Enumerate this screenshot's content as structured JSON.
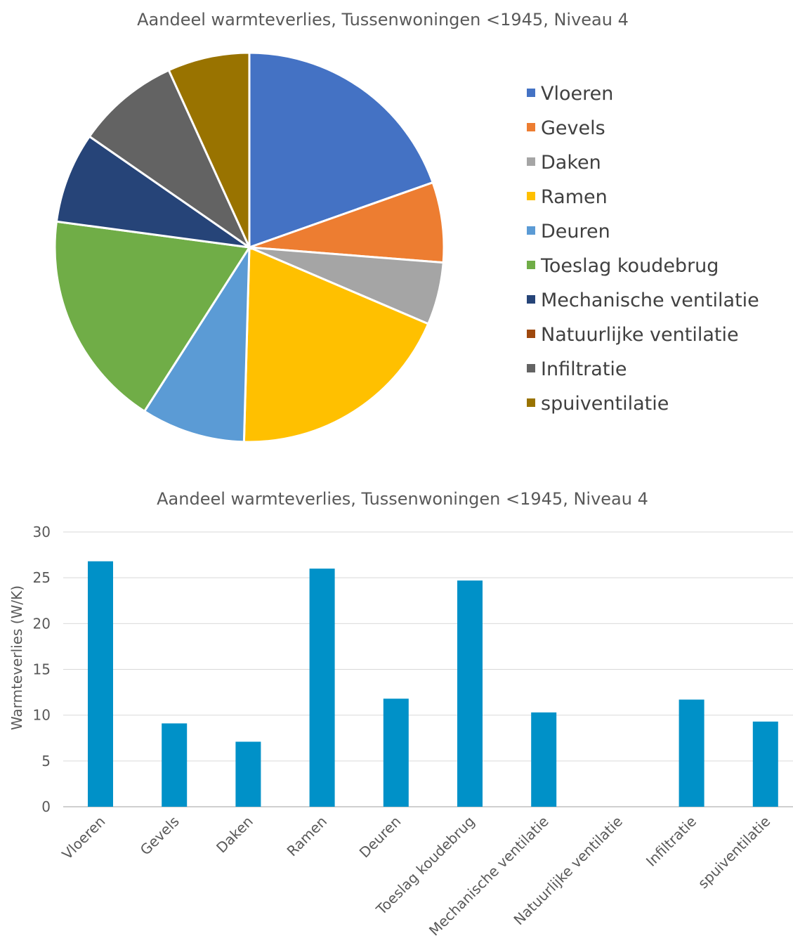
{
  "chart_data": [
    {
      "type": "pie",
      "title": "Aandeel warmteverlies, Tussenwoningen <1945, Niveau 4",
      "categories": [
        "Vloeren",
        "Gevels",
        "Daken",
        "Ramen",
        "Deuren",
        "Toeslag koudebrug",
        "Mechanische ventilatie",
        "Natuurlijke ventilatie",
        "Infiltratie",
        "spuiventilatie"
      ],
      "values": [
        26.8,
        9.1,
        7.1,
        26.0,
        11.8,
        24.7,
        10.3,
        0,
        11.7,
        9.3
      ],
      "colors": [
        "#4472C4",
        "#ED7D31",
        "#A5A5A5",
        "#FFC000",
        "#5B9BD5",
        "#70AD47",
        "#264478",
        "#9E480E",
        "#636363",
        "#997300"
      ],
      "legend_position": "right"
    },
    {
      "type": "bar",
      "title": "Aandeel warmteverlies, Tussenwoningen <1945, Niveau 4",
      "categories": [
        "Vloeren",
        "Gevels",
        "Daken",
        "Ramen",
        "Deuren",
        "Toeslag koudebrug",
        "Mechanische ventilatie",
        "Natuurlijke ventilatie",
        "Infiltratie",
        "spuiventilatie"
      ],
      "values": [
        26.8,
        9.1,
        7.1,
        26.0,
        11.8,
        24.7,
        10.3,
        0,
        11.7,
        9.3
      ],
      "xlabel": "",
      "ylabel": "Warmteverlies (W/K)",
      "ylim": [
        0,
        30
      ],
      "yticks": [
        0,
        5,
        10,
        15,
        20,
        25,
        30
      ],
      "grid": true,
      "bar_color": "#0091C8"
    }
  ]
}
